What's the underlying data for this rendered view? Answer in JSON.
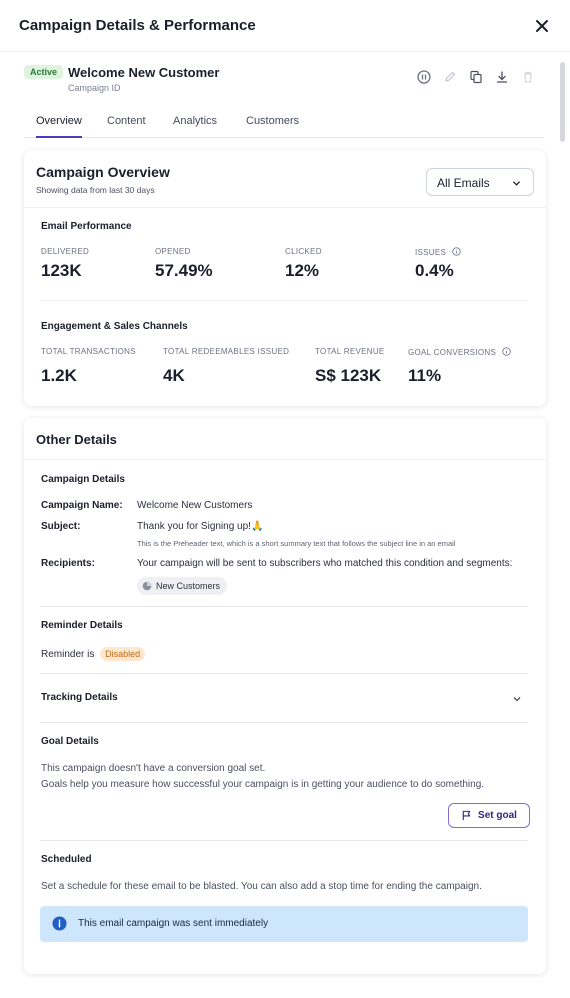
{
  "header": {
    "title": "Campaign Details & Performance"
  },
  "campaign": {
    "status": "Active",
    "name": "Welcome New Customer",
    "sub_label": "Campaign ID"
  },
  "tabs": [
    {
      "label": "Overview"
    },
    {
      "label": "Content"
    },
    {
      "label": "Analytics"
    },
    {
      "label": "Customers"
    }
  ],
  "overview": {
    "title": "Campaign Overview",
    "subtitle": "Showing data from last 30 days",
    "filter_value": "All Emails",
    "email_performance": {
      "label": "Email Performance",
      "stats": [
        {
          "label": "DELIVERED",
          "value": "123K"
        },
        {
          "label": "OPENED",
          "value": "57.49%"
        },
        {
          "label": "CLICKED",
          "value": "12%"
        },
        {
          "label": "ISSUES",
          "value": "0.4%"
        }
      ]
    },
    "engagement": {
      "label": "Engagement & Sales Channels",
      "stats": [
        {
          "label": "TOTAL TRANSACTIONS",
          "value": "1.2K"
        },
        {
          "label": "TOTAL REDEEMABLES ISSUED",
          "value": "4K"
        },
        {
          "label": "TOTAL REVENUE",
          "value": "S$ 123K"
        },
        {
          "label": "GOAL CONVERSIONS",
          "value": "11%"
        }
      ]
    }
  },
  "other": {
    "title": "Other Details",
    "campaign_details_label": "Campaign Details",
    "name_key": "Campaign Name:",
    "name_val": "Welcome New Customers",
    "subject_key": "Subject:",
    "subject_val": "Thank you for Signing up!🙏",
    "preheader": "This is the Preheader text, which is a short summary text that follows the subject line in an email",
    "recipients_key": "Recipients:",
    "recipients_val": "Your campaign will be sent to subscribers who matched this condition and segments:",
    "segment_chip": "New Customers",
    "reminder_label": "Reminder Details",
    "reminder_text": "Reminder is",
    "reminder_status": "Disabled",
    "tracking_label": "Tracking Details",
    "goal_label": "Goal Details",
    "goal_text_1": "This campaign doesn't have a conversion goal set.",
    "goal_text_2": "Goals help you measure how successful your campaign is in getting your audience to do something.",
    "set_goal_label": "Set goal",
    "scheduled_label": "Scheduled",
    "scheduled_text": "Set a schedule for these email to be blasted. You can also add a stop time for ending the campaign.",
    "info_text": "This email campaign was sent immediately"
  },
  "colors": {
    "accent": "#4b3bbf",
    "active_badge_bg": "#dff3df",
    "active_badge_text": "#2d7a3a",
    "disabled_badge_bg": "#fde7cf",
    "disabled_badge_text": "#c06a16",
    "info_box_bg": "#cde6fb",
    "info_icon": "#1f5fc4"
  },
  "icons": [
    "close-icon",
    "pause-icon",
    "edit-icon",
    "copy-icon",
    "download-icon",
    "delete-icon",
    "chevron-down-icon",
    "info-icon",
    "segment-icon",
    "flag-icon"
  ]
}
